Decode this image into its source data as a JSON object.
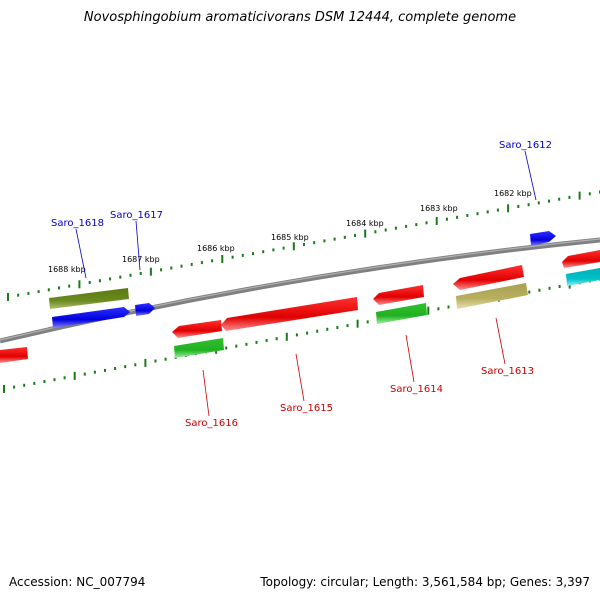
{
  "title": "Novosphingobium aromaticivorans DSM 12444, complete genome",
  "footer": {
    "accession": "Accession: NC_007794",
    "summary": "Topology: circular; Length: 3,561,584 bp; Genes: 3,397"
  },
  "colors": {
    "backbone": "#808080",
    "tick": "#1a7a1a",
    "label_plus": "#0000cc",
    "label_minus": "#cc0000",
    "gene_red": "#e00000",
    "gene_blue": "#0000dd",
    "gene_green": "#20b020",
    "gene_olive": "#5a7a10",
    "gene_khaki": "#b8b060",
    "gene_cyan": "#00c0c8"
  },
  "scale_labels": [
    "1688 kbp",
    "1687 kbp",
    "1686 kbp",
    "1685 kbp",
    "1684 kbp",
    "1683 kbp",
    "1682 kbp"
  ],
  "gene_labels": {
    "plus": [
      "Saro_1618",
      "Saro_1617",
      "Saro_1612"
    ],
    "minus": [
      "Saro_1616",
      "Saro_1615",
      "Saro_1614",
      "Saro_1613"
    ]
  }
}
